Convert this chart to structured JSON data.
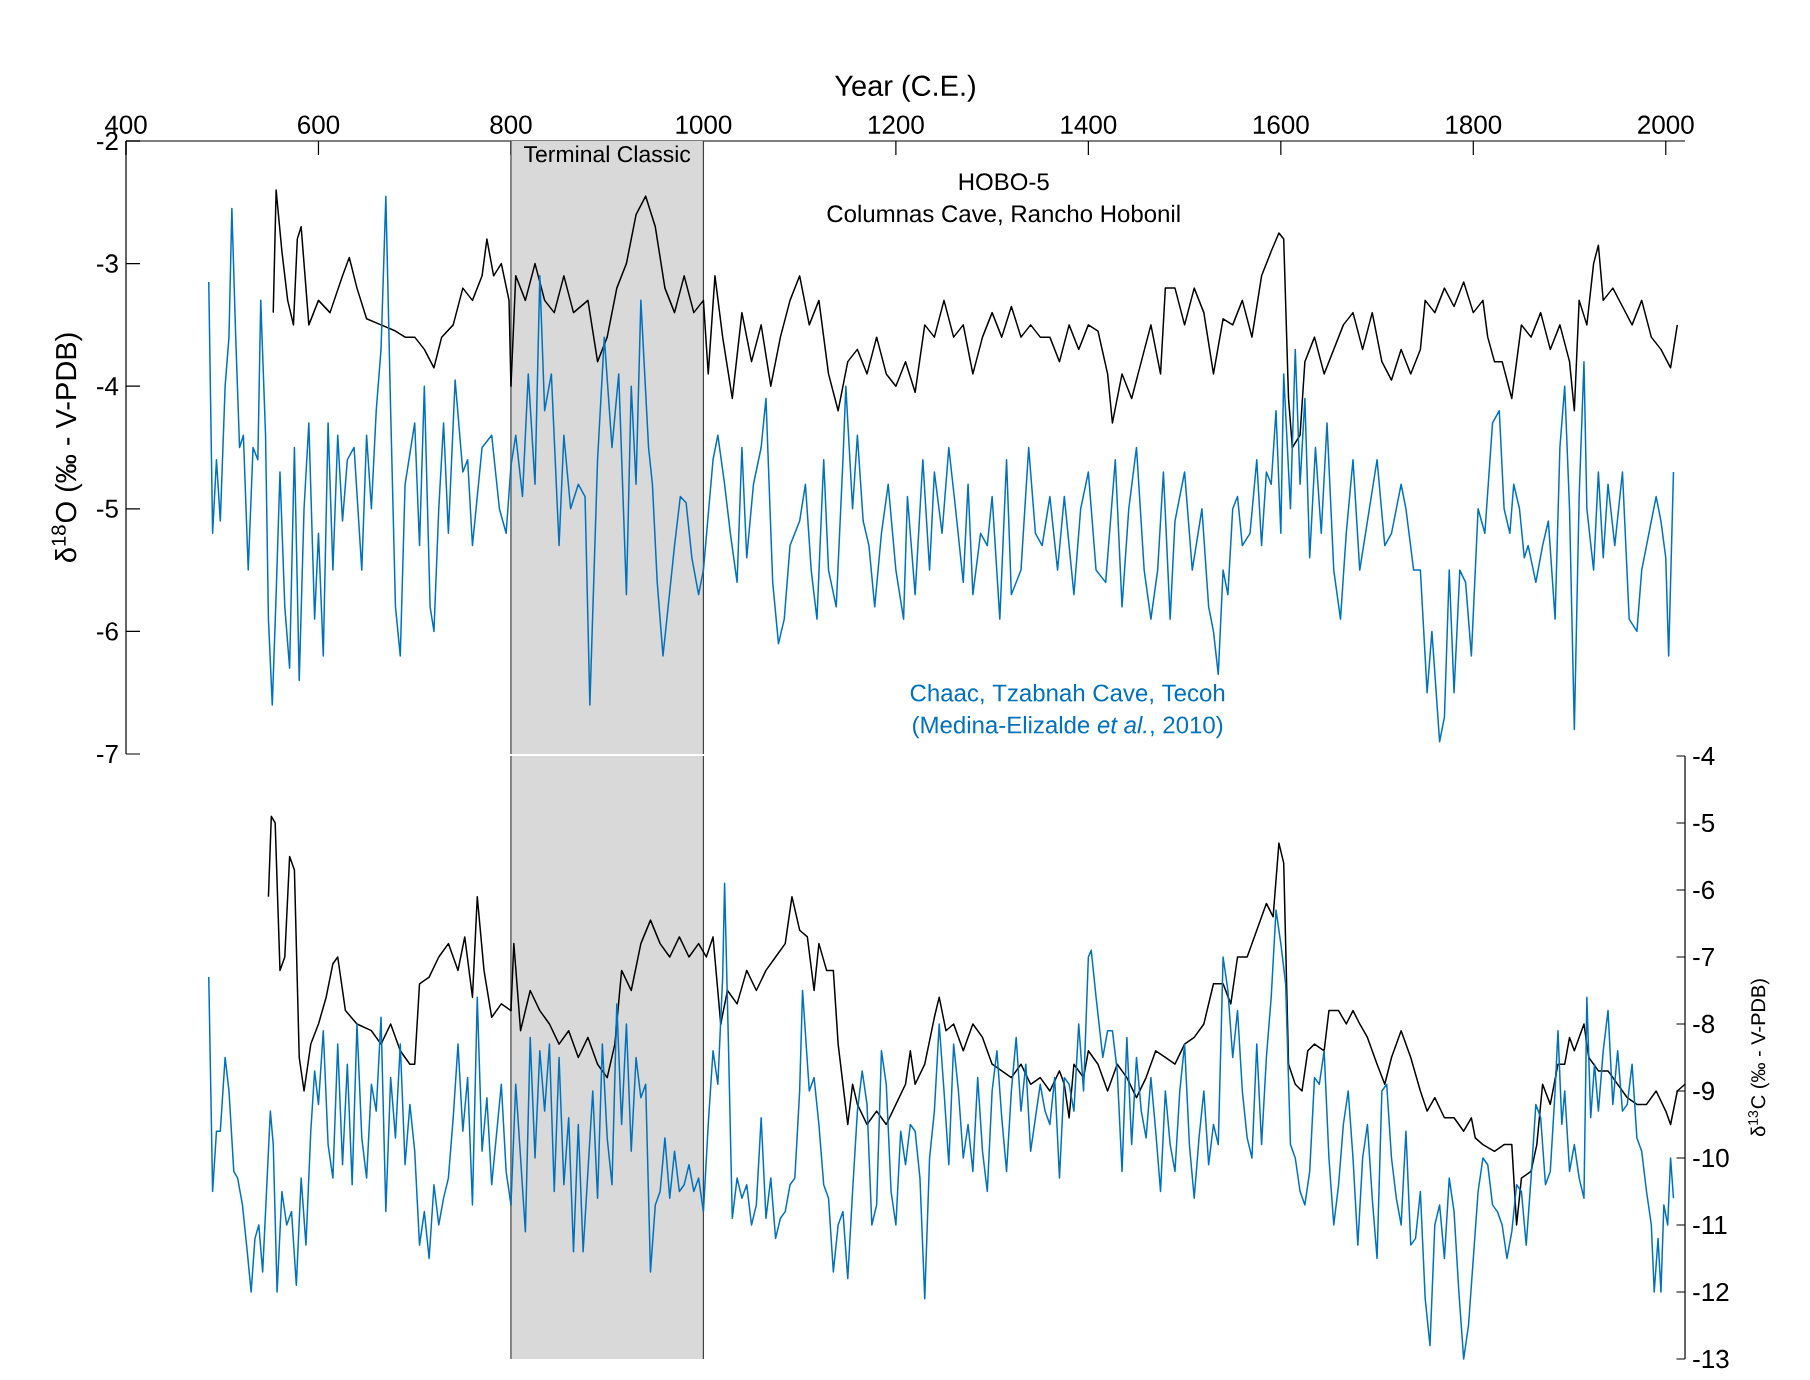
{
  "chart_data": [
    {
      "type": "line",
      "xlabel": "Year (C.E.)",
      "ylabel": "δ$^{18}$O (‰ - V-PDB)",
      "xlim": [
        400,
        2020
      ],
      "xticks": [
        400,
        600,
        800,
        1000,
        1200,
        1400,
        1600,
        1800,
        2000
      ],
      "ylim": [
        -7,
        -2
      ],
      "yticks": [
        -7,
        -6,
        -5,
        -4,
        -3,
        -2
      ],
      "bands": [
        {
          "axis": "x",
          "from": 800,
          "to": 1000,
          "label": "Terminal Classic",
          "color": "#d9d9d9"
        }
      ],
      "annotations": [
        "Columnas Cave, Rancho Hobonil",
        "(Medina-Elizalde *et al.*, 2010)"
      ],
      "series": [
        {
          "name": "HOBO-5",
          "color": "#000000",
          "x": [
            553,
            556,
            562,
            568,
            574,
            578,
            582,
            590,
            600,
            612,
            625,
            632,
            640,
            650,
            665,
            680,
            690,
            700,
            710,
            720,
            728,
            740,
            750,
            760,
            770,
            775,
            782,
            790,
            798,
            800,
            805,
            815,
            825,
            835,
            845,
            855,
            865,
            880,
            890,
            900,
            910,
            920,
            930,
            940,
            950,
            960,
            970,
            980,
            990,
            1000,
            1005,
            1012,
            1020,
            1030,
            1040,
            1050,
            1060,
            1070,
            1080,
            1090,
            1100,
            1110,
            1120,
            1130,
            1140,
            1150,
            1160,
            1170,
            1180,
            1190,
            1200,
            1210,
            1220,
            1230,
            1240,
            1250,
            1260,
            1270,
            1280,
            1290,
            1300,
            1310,
            1320,
            1330,
            1340,
            1350,
            1360,
            1370,
            1380,
            1390,
            1400,
            1410,
            1420,
            1425,
            1435,
            1445,
            1455,
            1465,
            1475,
            1480,
            1490,
            1500,
            1510,
            1520,
            1530,
            1540,
            1550,
            1560,
            1570,
            1580,
            1590,
            1598,
            1603,
            1608,
            1612,
            1620,
            1625,
            1635,
            1645,
            1655,
            1665,
            1675,
            1685,
            1695,
            1705,
            1715,
            1725,
            1735,
            1745,
            1750,
            1760,
            1770,
            1780,
            1790,
            1800,
            1810,
            1815,
            1822,
            1830,
            1840,
            1850,
            1860,
            1870,
            1880,
            1890,
            1900,
            1905,
            1910,
            1918,
            1925,
            1930,
            1935,
            1945,
            1955,
            1965,
            1975,
            1985,
            1995,
            2005,
            2012
          ],
          "values": [
            -3.4,
            -2.4,
            -2.9,
            -3.3,
            -3.5,
            -2.8,
            -2.7,
            -3.5,
            -3.3,
            -3.4,
            -3.1,
            -2.95,
            -3.2,
            -3.45,
            -3.5,
            -3.55,
            -3.6,
            -3.6,
            -3.7,
            -3.85,
            -3.6,
            -3.5,
            -3.2,
            -3.3,
            -3.1,
            -2.8,
            -3.1,
            -3.0,
            -3.3,
            -4.0,
            -3.1,
            -3.3,
            -3.0,
            -3.3,
            -3.4,
            -3.1,
            -3.4,
            -3.3,
            -3.8,
            -3.6,
            -3.2,
            -3.0,
            -2.6,
            -2.45,
            -2.7,
            -3.2,
            -3.4,
            -3.1,
            -3.4,
            -3.3,
            -3.9,
            -3.1,
            -3.6,
            -4.1,
            -3.4,
            -3.8,
            -3.5,
            -4.0,
            -3.6,
            -3.3,
            -3.1,
            -3.5,
            -3.3,
            -3.9,
            -4.2,
            -3.8,
            -3.7,
            -3.9,
            -3.6,
            -3.9,
            -4.0,
            -3.8,
            -4.05,
            -3.5,
            -3.6,
            -3.3,
            -3.6,
            -3.5,
            -3.9,
            -3.6,
            -3.4,
            -3.6,
            -3.35,
            -3.6,
            -3.5,
            -3.6,
            -3.6,
            -3.8,
            -3.5,
            -3.7,
            -3.5,
            -3.55,
            -3.9,
            -4.3,
            -3.9,
            -4.1,
            -3.8,
            -3.5,
            -3.9,
            -3.2,
            -3.2,
            -3.5,
            -3.2,
            -3.4,
            -3.9,
            -3.45,
            -3.5,
            -3.3,
            -3.6,
            -3.1,
            -2.9,
            -2.75,
            -2.8,
            -4.1,
            -4.5,
            -4.4,
            -3.8,
            -3.6,
            -3.9,
            -3.7,
            -3.5,
            -3.4,
            -3.7,
            -3.4,
            -3.8,
            -3.95,
            -3.7,
            -3.9,
            -3.7,
            -3.3,
            -3.4,
            -3.2,
            -3.35,
            -3.15,
            -3.4,
            -3.3,
            -3.6,
            -3.8,
            -3.8,
            -4.1,
            -3.5,
            -3.6,
            -3.4,
            -3.7,
            -3.5,
            -3.8,
            -4.2,
            -3.3,
            -3.5,
            -3.0,
            -2.85,
            -3.3,
            -3.2,
            -3.35,
            -3.5,
            -3.3,
            -3.6,
            -3.7,
            -3.85,
            -3.5
          ]
        },
        {
          "name": "Chaac, Tzabnah Cave, Tecoh",
          "color": "#0072bd",
          "x": [
            486,
            490,
            494,
            498,
            503,
            507,
            510,
            514,
            518,
            522,
            527,
            532,
            537,
            540,
            545,
            548,
            552,
            556,
            560,
            565,
            570,
            575,
            580,
            585,
            590,
            596,
            600,
            605,
            610,
            615,
            620,
            625,
            630,
            637,
            645,
            650,
            655,
            660,
            665,
            670,
            675,
            680,
            685,
            690,
            700,
            705,
            710,
            716,
            720,
            725,
            730,
            735,
            742,
            750,
            755,
            760,
            770,
            780,
            788,
            795,
            800,
            805,
            812,
            818,
            825,
            830,
            835,
            842,
            850,
            855,
            862,
            870,
            877,
            882,
            890,
            897,
            905,
            912,
            920,
            925,
            930,
            935,
            943,
            947,
            952,
            958,
            962,
            970,
            976,
            982,
            988,
            995,
            1000,
            1010,
            1015,
            1022,
            1028,
            1035,
            1040,
            1045,
            1052,
            1060,
            1065,
            1072,
            1078,
            1084,
            1090,
            1100,
            1106,
            1112,
            1118,
            1125,
            1130,
            1138,
            1145,
            1148,
            1155,
            1160,
            1166,
            1172,
            1178,
            1185,
            1192,
            1200,
            1208,
            1212,
            1220,
            1228,
            1235,
            1240,
            1248,
            1255,
            1262,
            1270,
            1275,
            1280,
            1288,
            1295,
            1300,
            1308,
            1315,
            1320,
            1330,
            1338,
            1345,
            1352,
            1360,
            1368,
            1375,
            1385,
            1392,
            1400,
            1408,
            1418,
            1428,
            1435,
            1442,
            1450,
            1458,
            1465,
            1472,
            1478,
            1485,
            1490,
            1500,
            1508,
            1518,
            1525,
            1530,
            1535,
            1540,
            1545,
            1550,
            1555,
            1560,
            1568,
            1575,
            1580,
            1585,
            1590,
            1595,
            1600,
            1603,
            1610,
            1615,
            1620,
            1625,
            1630,
            1636,
            1642,
            1648,
            1655,
            1662,
            1668,
            1675,
            1682,
            1690,
            1700,
            1708,
            1715,
            1725,
            1730,
            1738,
            1745,
            1752,
            1757,
            1765,
            1770,
            1775,
            1780,
            1786,
            1792,
            1798,
            1805,
            1812,
            1820,
            1827,
            1832,
            1838,
            1842,
            1848,
            1853,
            1857,
            1865,
            1872,
            1878,
            1885,
            1890,
            1895,
            1900,
            1905,
            1910,
            1915,
            1918,
            1925,
            1930,
            1935,
            1940,
            1947,
            1955,
            1962,
            1970,
            1975,
            1980,
            1990,
            1995,
            2000,
            2003,
            2008
          ],
          "values": [
            -3.15,
            -5.2,
            -4.6,
            -5.1,
            -4.0,
            -3.6,
            -2.55,
            -3.6,
            -4.5,
            -4.4,
            -5.5,
            -4.5,
            -4.6,
            -3.3,
            -4.4,
            -5.9,
            -6.6,
            -5.7,
            -4.7,
            -5.8,
            -6.3,
            -4.5,
            -6.4,
            -5.0,
            -4.3,
            -5.9,
            -5.2,
            -6.2,
            -4.3,
            -5.5,
            -4.4,
            -5.1,
            -4.6,
            -4.5,
            -5.5,
            -4.4,
            -5.0,
            -4.2,
            -3.7,
            -2.45,
            -4.2,
            -5.8,
            -6.2,
            -4.8,
            -4.3,
            -5.3,
            -4.0,
            -5.8,
            -6.0,
            -5.0,
            -4.3,
            -5.2,
            -3.95,
            -4.7,
            -4.6,
            -5.3,
            -4.5,
            -4.4,
            -5.0,
            -5.2,
            -4.65,
            -4.4,
            -4.9,
            -3.9,
            -4.8,
            -3.1,
            -4.2,
            -3.9,
            -5.3,
            -4.4,
            -5.0,
            -4.8,
            -4.9,
            -6.6,
            -4.6,
            -3.6,
            -4.5,
            -3.9,
            -5.7,
            -4.0,
            -4.8,
            -3.3,
            -4.5,
            -4.8,
            -5.6,
            -6.2,
            -5.9,
            -5.3,
            -4.9,
            -4.95,
            -5.4,
            -5.7,
            -5.5,
            -4.6,
            -4.4,
            -4.8,
            -5.2,
            -5.6,
            -4.5,
            -5.4,
            -4.8,
            -4.5,
            -4.1,
            -5.6,
            -6.1,
            -5.9,
            -5.3,
            -5.1,
            -4.8,
            -5.5,
            -5.9,
            -4.6,
            -5.5,
            -5.8,
            -4.6,
            -4.0,
            -5.0,
            -4.4,
            -5.1,
            -5.3,
            -5.8,
            -5.2,
            -4.8,
            -5.5,
            -5.9,
            -4.9,
            -5.7,
            -4.6,
            -5.5,
            -4.7,
            -5.2,
            -4.5,
            -5.0,
            -5.6,
            -4.8,
            -5.7,
            -5.2,
            -5.3,
            -4.9,
            -5.9,
            -4.6,
            -5.7,
            -5.5,
            -4.5,
            -5.2,
            -5.3,
            -4.9,
            -5.5,
            -4.9,
            -5.7,
            -5.0,
            -4.7,
            -5.5,
            -5.6,
            -4.6,
            -5.8,
            -5.0,
            -4.5,
            -5.5,
            -5.9,
            -5.5,
            -4.7,
            -5.9,
            -5.1,
            -4.7,
            -5.5,
            -5.0,
            -5.8,
            -6.0,
            -6.35,
            -5.5,
            -5.7,
            -5.0,
            -4.9,
            -5.3,
            -5.2,
            -4.6,
            -5.3,
            -4.7,
            -4.8,
            -4.2,
            -5.2,
            -3.9,
            -5.0,
            -3.7,
            -4.8,
            -4.1,
            -5.4,
            -4.5,
            -5.2,
            -4.3,
            -5.5,
            -5.9,
            -5.2,
            -4.6,
            -5.5,
            -5.1,
            -4.6,
            -5.3,
            -5.2,
            -4.8,
            -5.0,
            -5.5,
            -5.5,
            -6.5,
            -6.0,
            -6.9,
            -6.7,
            -5.5,
            -6.5,
            -5.5,
            -5.6,
            -6.2,
            -5.0,
            -5.2,
            -4.3,
            -4.2,
            -5.0,
            -5.2,
            -4.8,
            -5.0,
            -5.4,
            -5.3,
            -5.6,
            -5.3,
            -5.1,
            -5.9,
            -4.5,
            -4.0,
            -5.0,
            -6.8,
            -4.9,
            -3.8,
            -5.0,
            -5.5,
            -4.7,
            -5.4,
            -4.8,
            -5.3,
            -4.7,
            -5.9,
            -6.0,
            -5.5,
            -5.3,
            -4.9,
            -5.1,
            -5.4,
            -6.2,
            -4.7
          ]
        }
      ]
    },
    {
      "type": "line",
      "y2label": "δ$^{13}$C (‰ - V-PDB)",
      "xlim": [
        400,
        2020
      ],
      "y2lim": [
        -13,
        -4
      ],
      "y2ticks": [
        -13,
        -12,
        -11,
        -10,
        -9,
        -8,
        -7,
        -6,
        -5,
        -4
      ],
      "tick_labels": "y",
      "bands": [
        {
          "axis": "x",
          "from": 800,
          "to": 1000,
          "color": "#d9d9d9"
        }
      ],
      "series": [
        {
          "color": "#000000",
          "axis": "y2",
          "x": [
            548,
            551,
            555,
            560,
            565,
            570,
            575,
            580,
            585,
            592,
            600,
            608,
            615,
            620,
            628,
            640,
            655,
            665,
            675,
            685,
            695,
            700,
            705,
            715,
            725,
            735,
            745,
            752,
            760,
            765,
            772,
            780,
            790,
            800,
            803,
            810,
            820,
            830,
            840,
            850,
            860,
            870,
            880,
            890,
            900,
            908,
            915,
            925,
            935,
            945,
            955,
            965,
            975,
            985,
            995,
            1003,
            1010,
            1018,
            1025,
            1035,
            1045,
            1055,
            1065,
            1075,
            1085,
            1092,
            1100,
            1108,
            1115,
            1120,
            1128,
            1135,
            1140,
            1145,
            1150,
            1155,
            1160,
            1170,
            1180,
            1190,
            1200,
            1210,
            1215,
            1220,
            1230,
            1240,
            1245,
            1252,
            1260,
            1270,
            1280,
            1290,
            1300,
            1310,
            1320,
            1330,
            1340,
            1350,
            1360,
            1370,
            1375,
            1380,
            1385,
            1395,
            1400,
            1410,
            1420,
            1430,
            1440,
            1450,
            1460,
            1470,
            1480,
            1490,
            1500,
            1510,
            1520,
            1530,
            1540,
            1548,
            1555,
            1565,
            1575,
            1585,
            1592,
            1598,
            1603,
            1608,
            1615,
            1622,
            1628,
            1635,
            1645,
            1650,
            1660,
            1668,
            1675,
            1682,
            1690,
            1700,
            1708,
            1715,
            1725,
            1735,
            1745,
            1752,
            1760,
            1770,
            1780,
            1790,
            1798,
            1802,
            1810,
            1822,
            1832,
            1840,
            1845,
            1850,
            1860,
            1866,
            1872,
            1880,
            1888,
            1895,
            1900,
            1905,
            1915,
            1920,
            1930,
            1940,
            1950,
            1960,
            1970,
            1980,
            1990,
            2000,
            2005,
            2012,
            2020
          ],
          "values": [
            -6.1,
            -4.9,
            -5.0,
            -7.2,
            -7.0,
            -5.5,
            -5.7,
            -8.5,
            -9.0,
            -8.3,
            -8.0,
            -7.6,
            -7.1,
            -7.0,
            -7.8,
            -8.0,
            -8.1,
            -8.3,
            -8.0,
            -8.4,
            -8.6,
            -8.6,
            -7.4,
            -7.3,
            -7.0,
            -6.8,
            -7.2,
            -6.7,
            -7.6,
            -6.1,
            -7.2,
            -7.9,
            -7.7,
            -7.8,
            -6.8,
            -8.1,
            -7.5,
            -7.8,
            -8.0,
            -8.3,
            -8.1,
            -8.5,
            -8.2,
            -8.6,
            -8.8,
            -8.3,
            -7.2,
            -7.5,
            -6.8,
            -6.45,
            -6.8,
            -7.0,
            -6.7,
            -7.0,
            -6.8,
            -7.0,
            -6.7,
            -8.0,
            -7.5,
            -7.7,
            -7.2,
            -7.5,
            -7.2,
            -7.0,
            -6.8,
            -6.1,
            -6.6,
            -6.7,
            -7.5,
            -6.8,
            -7.2,
            -7.2,
            -8.3,
            -8.9,
            -9.5,
            -8.9,
            -9.2,
            -9.5,
            -9.3,
            -9.5,
            -9.2,
            -8.9,
            -8.4,
            -8.9,
            -8.6,
            -7.9,
            -7.6,
            -8.1,
            -8.0,
            -8.4,
            -8.0,
            -8.2,
            -8.6,
            -8.7,
            -8.8,
            -8.6,
            -8.9,
            -8.8,
            -9.0,
            -8.7,
            -8.9,
            -9.4,
            -8.6,
            -8.8,
            -8.4,
            -8.6,
            -9.0,
            -8.6,
            -8.8,
            -9.1,
            -8.8,
            -8.4,
            -8.5,
            -8.6,
            -8.3,
            -8.2,
            -8.0,
            -7.4,
            -7.4,
            -7.7,
            -7.0,
            -7.0,
            -6.6,
            -6.2,
            -6.4,
            -5.3,
            -5.6,
            -8.6,
            -8.9,
            -9.0,
            -8.4,
            -8.3,
            -8.4,
            -7.8,
            -7.8,
            -8.0,
            -7.8,
            -8.0,
            -8.2,
            -8.6,
            -8.9,
            -8.5,
            -8.1,
            -8.5,
            -9.0,
            -9.3,
            -9.1,
            -9.4,
            -9.4,
            -9.6,
            -9.4,
            -9.7,
            -9.8,
            -9.9,
            -9.8,
            -9.8,
            -11.0,
            -10.3,
            -10.2,
            -9.8,
            -8.9,
            -9.2,
            -8.6,
            -8.6,
            -8.2,
            -8.4,
            -8.0,
            -8.5,
            -8.7,
            -8.7,
            -8.9,
            -9.1,
            -9.2,
            -9.2,
            -9.0,
            -9.3,
            -9.5,
            -9.0,
            -8.9
          ]
        },
        {
          "color": "#0072bd",
          "axis": "y2",
          "x": [
            486,
            490,
            494,
            498,
            503,
            507,
            512,
            516,
            521,
            526,
            530,
            534,
            538,
            542,
            547,
            550,
            553,
            557,
            562,
            567,
            572,
            577,
            582,
            587,
            592,
            596,
            600,
            605,
            610,
            615,
            620,
            625,
            630,
            635,
            640,
            645,
            650,
            655,
            660,
            665,
            670,
            675,
            680,
            685,
            690,
            695,
            700,
            705,
            710,
            715,
            720,
            725,
            730,
            735,
            740,
            745,
            750,
            755,
            760,
            765,
            770,
            775,
            780,
            790,
            795,
            800,
            805,
            810,
            815,
            820,
            825,
            830,
            835,
            840,
            845,
            850,
            855,
            860,
            865,
            870,
            875,
            880,
            885,
            890,
            895,
            900,
            905,
            910,
            915,
            920,
            925,
            930,
            935,
            940,
            945,
            950,
            955,
            960,
            965,
            970,
            975,
            980,
            985,
            990,
            995,
            1000,
            1005,
            1010,
            1015,
            1020,
            1022,
            1026,
            1030,
            1035,
            1040,
            1045,
            1050,
            1055,
            1060,
            1065,
            1070,
            1075,
            1080,
            1085,
            1090,
            1095,
            1100,
            1103,
            1110,
            1115,
            1120,
            1125,
            1130,
            1135,
            1140,
            1145,
            1150,
            1155,
            1160,
            1165,
            1170,
            1175,
            1180,
            1185,
            1190,
            1195,
            1200,
            1205,
            1210,
            1215,
            1220,
            1225,
            1230,
            1235,
            1240,
            1245,
            1250,
            1255,
            1260,
            1265,
            1270,
            1275,
            1280,
            1285,
            1290,
            1295,
            1300,
            1305,
            1310,
            1315,
            1320,
            1325,
            1330,
            1335,
            1340,
            1345,
            1350,
            1355,
            1360,
            1365,
            1370,
            1375,
            1380,
            1385,
            1390,
            1395,
            1400,
            1403,
            1408,
            1415,
            1420,
            1425,
            1430,
            1435,
            1440,
            1445,
            1450,
            1455,
            1460,
            1465,
            1470,
            1475,
            1480,
            1485,
            1490,
            1495,
            1500,
            1505,
            1510,
            1515,
            1520,
            1525,
            1530,
            1535,
            1540,
            1545,
            1550,
            1555,
            1560,
            1565,
            1570,
            1575,
            1580,
            1585,
            1590,
            1595,
            1600,
            1605,
            1610,
            1615,
            1620,
            1625,
            1630,
            1635,
            1640,
            1645,
            1650,
            1655,
            1660,
            1665,
            1670,
            1675,
            1680,
            1685,
            1690,
            1695,
            1700,
            1705,
            1710,
            1715,
            1720,
            1725,
            1730,
            1735,
            1740,
            1745,
            1750,
            1755,
            1760,
            1765,
            1770,
            1775,
            1780,
            1785,
            1790,
            1795,
            1800,
            1805,
            1810,
            1815,
            1820,
            1825,
            1830,
            1835,
            1840,
            1845,
            1850,
            1855,
            1860,
            1865,
            1870,
            1875,
            1880,
            1885,
            1888,
            1892,
            1895,
            1900,
            1905,
            1910,
            1915,
            1918,
            1922,
            1926,
            1930,
            1935,
            1940,
            1945,
            1950,
            1955,
            1960,
            1965,
            1970,
            1975,
            1980,
            1985,
            1988,
            1992,
            1995,
            1998,
            2002,
            2005,
            2008
          ],
          "values": [
            -7.3,
            -10.5,
            -9.6,
            -9.6,
            -8.5,
            -9.0,
            -10.2,
            -10.3,
            -10.7,
            -11.4,
            -12.0,
            -11.2,
            -11.0,
            -11.7,
            -10.2,
            -9.3,
            -9.8,
            -12.0,
            -10.5,
            -11.0,
            -10.8,
            -11.9,
            -10.3,
            -11.3,
            -9.6,
            -8.7,
            -9.2,
            -8.1,
            -9.8,
            -10.3,
            -8.3,
            -10.1,
            -8.6,
            -10.4,
            -8.0,
            -9.7,
            -10.3,
            -8.9,
            -9.3,
            -7.9,
            -10.8,
            -8.8,
            -9.7,
            -8.3,
            -10.1,
            -9.2,
            -9.9,
            -11.3,
            -10.8,
            -11.5,
            -10.4,
            -11.0,
            -10.6,
            -10.3,
            -9.4,
            -8.3,
            -9.6,
            -8.8,
            -10.7,
            -7.6,
            -9.9,
            -9.1,
            -10.4,
            -8.9,
            -10.2,
            -10.7,
            -8.9,
            -10.0,
            -11.1,
            -8.2,
            -10.0,
            -8.4,
            -9.3,
            -8.3,
            -10.5,
            -8.5,
            -10.4,
            -9.4,
            -11.4,
            -9.5,
            -11.4,
            -10.2,
            -9.0,
            -10.6,
            -8.3,
            -9.7,
            -10.4,
            -7.7,
            -9.5,
            -8.0,
            -9.9,
            -8.5,
            -9.1,
            -8.9,
            -11.7,
            -10.7,
            -10.5,
            -9.7,
            -10.6,
            -9.9,
            -10.5,
            -10.4,
            -10.1,
            -10.5,
            -10.3,
            -10.8,
            -9.5,
            -8.4,
            -8.9,
            -7.3,
            -5.9,
            -8.3,
            -10.9,
            -10.3,
            -10.6,
            -10.4,
            -11.0,
            -10.7,
            -9.4,
            -10.9,
            -10.3,
            -11.2,
            -10.9,
            -10.8,
            -10.4,
            -10.3,
            -9.0,
            -7.5,
            -9.0,
            -8.8,
            -9.5,
            -10.4,
            -10.6,
            -11.7,
            -11.0,
            -10.8,
            -11.8,
            -10.5,
            -9.3,
            -8.7,
            -9.2,
            -11.0,
            -10.7,
            -8.4,
            -8.9,
            -10.5,
            -11.0,
            -9.6,
            -10.1,
            -9.5,
            -9.6,
            -10.3,
            -12.1,
            -10.0,
            -9.3,
            -8.0,
            -9.0,
            -10.1,
            -8.3,
            -9.0,
            -10.0,
            -9.5,
            -10.2,
            -8.8,
            -9.9,
            -10.5,
            -9.0,
            -8.4,
            -9.4,
            -10.2,
            -9.0,
            -8.2,
            -9.3,
            -8.6,
            -9.9,
            -9.4,
            -8.9,
            -9.3,
            -9.5,
            -8.8,
            -10.3,
            -8.8,
            -8.9,
            -9.3,
            -8.0,
            -9.0,
            -7.0,
            -6.9,
            -7.6,
            -8.5,
            -8.1,
            -8.1,
            -8.7,
            -10.2,
            -8.2,
            -9.8,
            -8.5,
            -9.3,
            -9.7,
            -8.8,
            -9.6,
            -10.5,
            -9.0,
            -9.8,
            -10.2,
            -9.0,
            -8.3,
            -9.8,
            -10.6,
            -9.7,
            -9.0,
            -10.1,
            -9.5,
            -9.8,
            -7.0,
            -7.5,
            -8.5,
            -7.8,
            -9.0,
            -9.7,
            -10.0,
            -8.3,
            -9.8,
            -8.5,
            -7.6,
            -6.3,
            -6.8,
            -7.4,
            -9.8,
            -10.0,
            -10.5,
            -10.7,
            -10.2,
            -8.8,
            -8.9,
            -8.4,
            -10.0,
            -11.0,
            -10.4,
            -9.5,
            -9.0,
            -10.0,
            -11.3,
            -10.0,
            -9.5,
            -10.6,
            -11.5,
            -9.0,
            -8.9,
            -10.0,
            -10.6,
            -11.0,
            -9.6,
            -11.3,
            -11.2,
            -10.5,
            -12.1,
            -12.8,
            -11.0,
            -10.7,
            -11.5,
            -10.3,
            -10.8,
            -12.0,
            -13.0,
            -12.5,
            -11.5,
            -10.5,
            -10.0,
            -10.1,
            -10.7,
            -10.8,
            -11.0,
            -11.5,
            -11.1,
            -10.4,
            -10.5,
            -11.3,
            -10.3,
            -9.2,
            -9.4,
            -10.4,
            -10.2,
            -9.0,
            -8.1,
            -9.5,
            -9.0,
            -10.2,
            -9.8,
            -10.3,
            -10.6,
            -7.6,
            -9.4,
            -8.6,
            -9.3,
            -8.4,
            -7.8,
            -9.2,
            -8.4,
            -9.3,
            -9.2,
            -8.6,
            -9.7,
            -9.9,
            -10.5,
            -11.0,
            -12.0,
            -11.2,
            -12.0,
            -10.7,
            -11.0,
            -10.0,
            -10.6
          ]
        }
      ]
    }
  ]
}
